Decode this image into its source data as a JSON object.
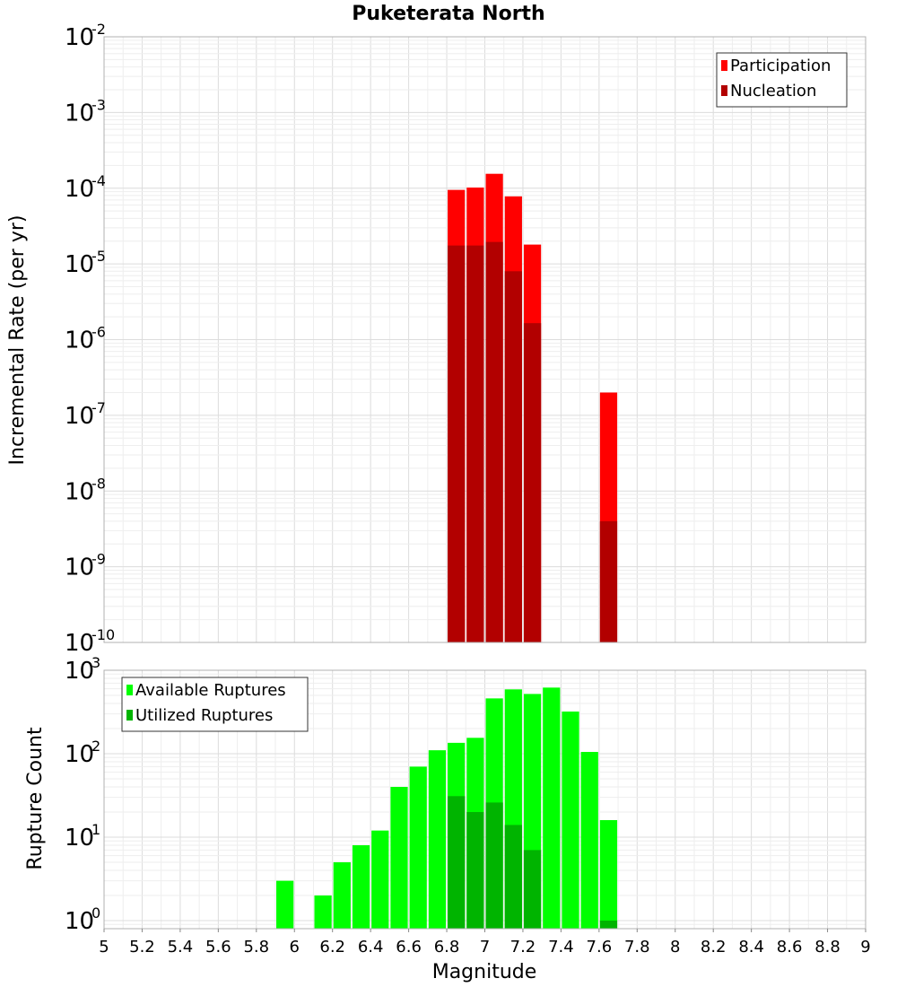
{
  "chart_data": [
    {
      "type": "bar",
      "title": "Puketerata North",
      "xlabel": "",
      "ylabel": "Incremental Rate (per yr)",
      "yscale": "log",
      "ylim": [
        1e-10,
        0.01
      ],
      "xlim": [
        5,
        9
      ],
      "bar_width": 0.1,
      "legend_position": "top-right",
      "grid": true,
      "series": [
        {
          "name": "Participation",
          "color": "#ff0000",
          "x": [
            6.85,
            6.95,
            7.05,
            7.15,
            7.25,
            7.65
          ],
          "values": [
            9.5e-05,
            0.000102,
            0.000155,
            7.8e-05,
            1.8e-05,
            2e-07
          ]
        },
        {
          "name": "Nucleation",
          "color": "#b20000",
          "x": [
            6.85,
            6.95,
            7.05,
            7.15,
            7.25,
            7.65
          ],
          "values": [
            1.75e-05,
            1.75e-05,
            1.95e-05,
            8e-06,
            1.65e-06,
            4e-09
          ]
        }
      ]
    },
    {
      "type": "bar",
      "xlabel": "Magnitude",
      "ylabel": "Rupture Count",
      "yscale": "log",
      "ylim": [
        0.8,
        1000
      ],
      "xlim": [
        5,
        9
      ],
      "bar_width": 0.1,
      "legend_position": "top-left",
      "grid": true,
      "series": [
        {
          "name": "Available Ruptures",
          "color": "#00ff00",
          "x": [
            5.95,
            6.15,
            6.25,
            6.35,
            6.45,
            6.55,
            6.65,
            6.75,
            6.85,
            6.95,
            7.05,
            7.15,
            7.25,
            7.35,
            7.45,
            7.55,
            7.65
          ],
          "values": [
            3,
            2,
            5,
            8,
            12,
            40,
            70,
            110,
            135,
            155,
            460,
            590,
            520,
            620,
            320,
            105,
            16
          ]
        },
        {
          "name": "Utilized Ruptures",
          "color": "#00b400",
          "x": [
            6.85,
            6.95,
            7.05,
            7.15,
            7.25,
            7.65
          ],
          "values": [
            31,
            20,
            26,
            14,
            7,
            1
          ]
        }
      ]
    }
  ],
  "x_ticks": [
    "5",
    "5.2",
    "5.4",
    "5.6",
    "5.8",
    "6",
    "6.2",
    "6.4",
    "6.6",
    "6.8",
    "7",
    "7.2",
    "7.4",
    "7.6",
    "7.8",
    "8",
    "8.2",
    "8.4",
    "8.6",
    "8.8",
    "9"
  ],
  "top_y_ticks": [
    {
      "base": "10",
      "exp": "-2"
    },
    {
      "base": "10",
      "exp": "-3"
    },
    {
      "base": "10",
      "exp": "-4"
    },
    {
      "base": "10",
      "exp": "-5"
    },
    {
      "base": "10",
      "exp": "-6"
    },
    {
      "base": "10",
      "exp": "-7"
    },
    {
      "base": "10",
      "exp": "-8"
    },
    {
      "base": "10",
      "exp": "-9"
    },
    {
      "base": "10",
      "exp": "-10"
    }
  ],
  "bottom_y_ticks": [
    {
      "base": "10",
      "exp": "3"
    },
    {
      "base": "10",
      "exp": "2"
    },
    {
      "base": "10",
      "exp": "1"
    },
    {
      "base": "10",
      "exp": "0"
    }
  ]
}
